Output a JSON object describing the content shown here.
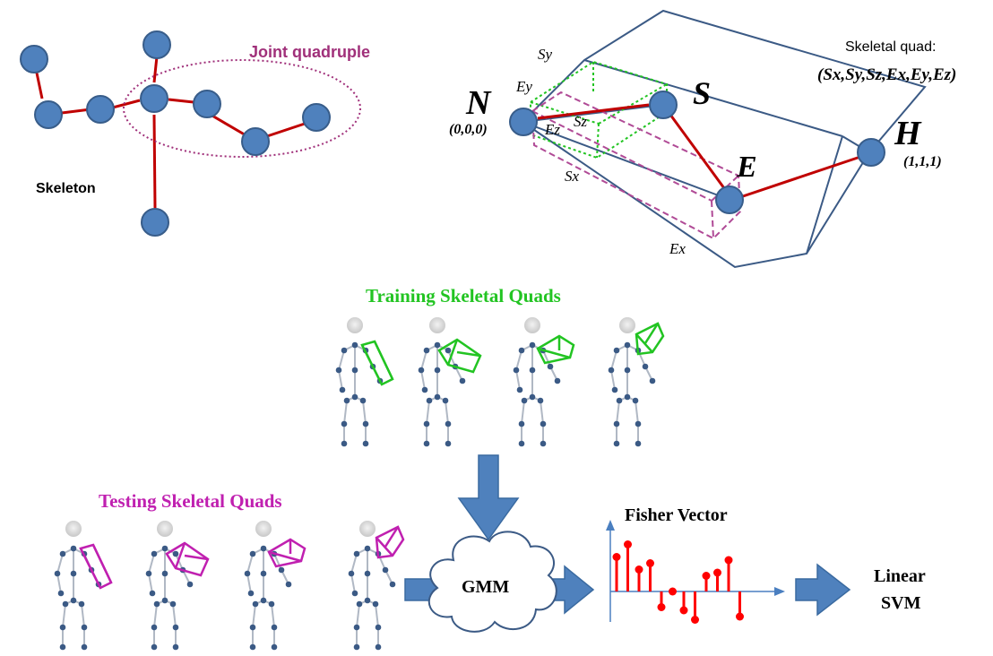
{
  "skeleton_panel": {
    "joint_quadruple_label": "Joint quadruple",
    "skeleton_label": "Skeleton"
  },
  "quad_panel": {
    "skeletal_quad_title": "Skeletal quad:",
    "skeletal_quad_tuple": "(Sx,Sy,Sz,Ex,Ey,Ez)",
    "joint_N": "N",
    "joint_N_coord": "(0,0,0)",
    "joint_S": "S",
    "joint_E": "E",
    "joint_H": "H",
    "joint_H_coord": "(1,1,1)",
    "axis_Sy": "Sy",
    "axis_Ey": "Ey",
    "axis_Sz": "Sz",
    "axis_Ez": "Ez",
    "axis_Sx": "Sx",
    "axis_Ex": "Ex"
  },
  "pipeline": {
    "training_label": "Training Skeletal Quads",
    "testing_label": "Testing Skeletal Quads",
    "gmm_label": "GMM",
    "fisher_label": "Fisher Vector",
    "svm_label_line1": "Linear",
    "svm_label_line2": "SVM"
  },
  "colors": {
    "joint_fill": "#4f81bd",
    "joint_stroke": "#385d8a",
    "bone": "#c00000",
    "quadruple_ellipse": "#a0307a",
    "cube_outline": "#3b5a85",
    "green_quad": "#22c422",
    "magenta_quad": "#c020b0",
    "arrow_fill": "#4f81bd",
    "fisher_stem": "#ff0000",
    "axis": "#4a7fc0"
  },
  "fisher_vector_values": [
    0.55,
    0.75,
    0.35,
    0.45,
    -0.25,
    0.0,
    -0.3,
    -0.45,
    0.25,
    0.3,
    0.5,
    -0.4
  ]
}
